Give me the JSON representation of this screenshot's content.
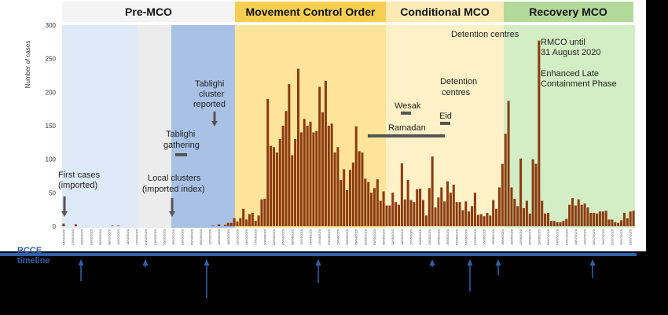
{
  "colors": {
    "bar": "#8b3a0f",
    "band_premco_light": "#dde9f6",
    "band_gap": "#ececec",
    "band_premco_dark": "#a9c1e5",
    "band_mco": "#fde49a",
    "band_cmco": "#fff1c7",
    "band_rmco": "#d3edc4",
    "header_premco": "#f4f4f4",
    "header_mco": "#f6cf52",
    "header_cmco": "#fbeab3",
    "header_rmco": "#b3d99a",
    "timeline": "#2e62ae",
    "annotation_line": "#555555"
  },
  "phases": [
    {
      "label": "Pre-MCO"
    },
    {
      "label": "Movement Control Order"
    },
    {
      "label": "Conditional MCO"
    },
    {
      "label": "Recovery MCO"
    }
  ],
  "timeline": {
    "label": "RCCE timeline"
  },
  "annotations": {
    "first_cases": [
      "First cases",
      "(imported)"
    ],
    "local_clusters": [
      "Local clusters",
      "(imported index)"
    ],
    "tabligi_gathering": [
      "Tablighi",
      "gathering"
    ],
    "tabligi_cluster": [
      "Tablighi",
      "cluster",
      "reported"
    ],
    "wesak": "Wesak",
    "ramadan": "Ramadan",
    "eid": "Eid",
    "detention_1": [
      "Detention",
      "centres"
    ],
    "detention_2": "Detention centres",
    "rmco": [
      "RMCO until",
      "31 August 2020",
      "",
      "Enhanced Late",
      "Containment Phase"
    ]
  },
  "chart_data": {
    "type": "bar",
    "ylabel": "Number of cases",
    "ylim": [
      0,
      300
    ],
    "yticks": [
      0,
      50,
      100,
      150,
      200,
      250,
      300
    ],
    "x_start": "24/01/2020",
    "x_end": "19/07/2020",
    "values": [
      4,
      0,
      0,
      0,
      3,
      0,
      0,
      0,
      0,
      0,
      0,
      0,
      0,
      0,
      0,
      0,
      1,
      0,
      1,
      0,
      0,
      0,
      0,
      0,
      0,
      0,
      0,
      0,
      0,
      0,
      0,
      0,
      0,
      0,
      0,
      0,
      0,
      0,
      0,
      0,
      0,
      0,
      0,
      0,
      0,
      0,
      0,
      0,
      0,
      1,
      0,
      3,
      0,
      2,
      5,
      5,
      12,
      7,
      12,
      26,
      10,
      18,
      20,
      8,
      16,
      40,
      41,
      190,
      120,
      118,
      110,
      130,
      150,
      172,
      212,
      106,
      130,
      235,
      140,
      160,
      150,
      156,
      140,
      142,
      208,
      170,
      217,
      150,
      153,
      110,
      118,
      69,
      85,
      54,
      84,
      95,
      149,
      112,
      110,
      71,
      66,
      50,
      57,
      70,
      38,
      52,
      31,
      31,
      50,
      36,
      32,
      94,
      40,
      69,
      39,
      36,
      55,
      56,
      39,
      16,
      57,
      104,
      28,
      43,
      58,
      37,
      67,
      50,
      62,
      36,
      36,
      24,
      37,
      22,
      30,
      50,
      17,
      18,
      15,
      20,
      16,
      39,
      26,
      58,
      93,
      138,
      187,
      58,
      41,
      30,
      101,
      27,
      38,
      19,
      100,
      93,
      277,
      38,
      19,
      20,
      8,
      8,
      6,
      6,
      8,
      11,
      32,
      42,
      31,
      40,
      32,
      34,
      28,
      20,
      20,
      19,
      22,
      22,
      23,
      10,
      10,
      6,
      5,
      9,
      20,
      12,
      22,
      23
    ]
  }
}
